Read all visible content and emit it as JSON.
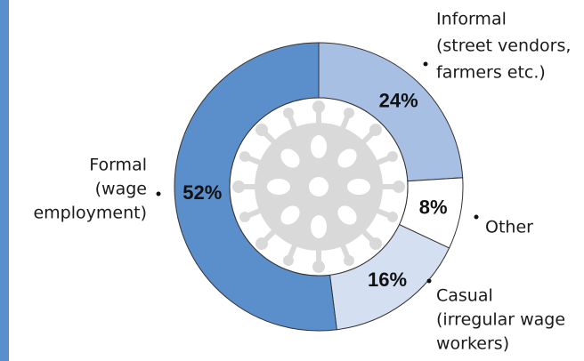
{
  "chart_data": {
    "type": "donut",
    "categories": [
      [
        "Informal",
        "(street vendors,",
        "farmers etc.)"
      ],
      [
        "Other"
      ],
      [
        "Casual",
        "(irregular wage",
        "workers)"
      ],
      [
        "Formal",
        "(wage",
        "employment)"
      ]
    ],
    "values": [
      24,
      8,
      16,
      52
    ],
    "value_labels": [
      "24%",
      "8%",
      "16%",
      "52%"
    ],
    "colors": [
      "#a7bfe3",
      "#ffffff",
      "#d4dff2",
      "#5b8fcc"
    ]
  }
}
